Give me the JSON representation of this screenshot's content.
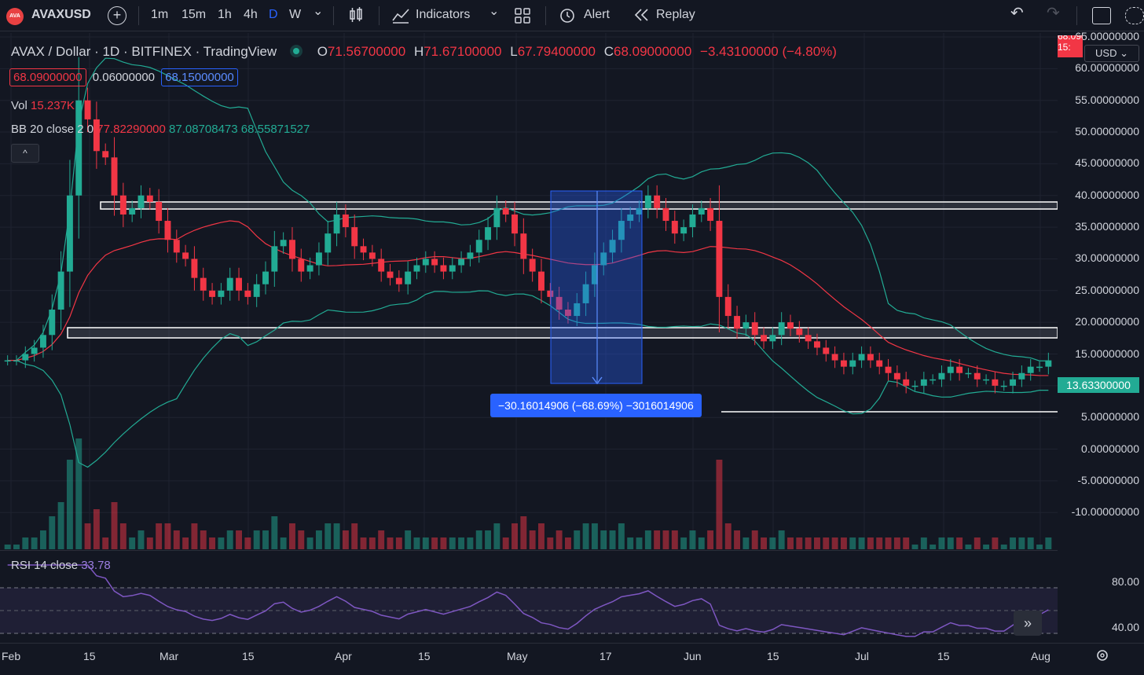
{
  "toolbar": {
    "logo_text": "AVA",
    "symbol": "AVAXUSD",
    "add_symbol": "+",
    "intervals": [
      "1m",
      "15m",
      "1h",
      "4h",
      "D",
      "W"
    ],
    "active_interval": "D",
    "interval_menu": "⌄",
    "indicators_label": "Indicators",
    "alert_label": "Alert",
    "replay_label": "Replay",
    "undo": "↶",
    "redo": "↷"
  },
  "legend": {
    "title": "AVAX / Dollar · 1D · BITFINEX · TradingView",
    "o_label": "O",
    "o": "71.56700000",
    "h_label": "H",
    "h": "71.67100000",
    "l_label": "L",
    "l": "67.79400000",
    "c_label": "C",
    "c": "68.09000000",
    "change": "−3.43100000 (−4.80%)",
    "bid": "68.09000000",
    "spread": "0.06000000",
    "ask": "68.15000000",
    "vol_label": "Vol",
    "vol": "15.237K",
    "bb_label": "BB 20 close 2 0",
    "bb_basis": "77.82290000",
    "bb_upper": "87.08708473",
    "bb_lower": "68.55871527",
    "collapse": "^",
    "rsi_label": "RSI 14 close",
    "rsi_value": "33.78"
  },
  "measure": {
    "text": "−30.16014906 (−68.69%) −3016014906"
  },
  "axis": {
    "unit": "USD",
    "top_price_a": "68.09000000",
    "top_price_b": "15:",
    "last_price": "13.63300000",
    "y_labels": [
      "65.00000000",
      "60.00000000",
      "55.00000000",
      "50.00000000",
      "45.00000000",
      "40.00000000",
      "35.00000000",
      "30.00000000",
      "25.00000000",
      "20.00000000",
      "15.00000000",
      "10.00000000",
      "5.00000000",
      "0.00000000",
      "-5.00000000",
      "-10.00000000"
    ],
    "rsi_labels": [
      "80.00",
      "40.00"
    ]
  },
  "xaxis": {
    "labels": [
      "Feb",
      "15",
      "Mar",
      "15",
      "Apr",
      "15",
      "May",
      "17",
      "Jun",
      "15",
      "Jul",
      "15",
      "Aug"
    ]
  },
  "colors": {
    "up": "#22ab94",
    "down": "#f23645",
    "accent": "#2962ff",
    "rsi": "#7e57c2"
  },
  "chart_data": {
    "type": "candlestick",
    "symbol": "AVAXUSD",
    "interval": "1D",
    "ylim": [
      -10,
      65
    ],
    "close_approx": [
      14,
      14,
      15,
      16,
      18,
      22,
      28,
      40,
      55,
      52,
      47,
      46,
      40,
      37,
      38,
      40,
      39,
      36,
      33,
      31,
      30,
      27,
      25,
      24,
      25,
      27,
      25,
      24,
      26,
      28,
      32,
      33,
      30,
      28,
      29,
      31,
      34,
      37,
      35,
      32,
      31,
      30,
      28,
      27,
      26,
      28,
      29,
      30,
      29,
      28,
      29,
      30,
      31,
      33,
      35,
      38,
      37,
      34,
      30,
      28,
      25,
      24,
      22,
      21,
      23,
      26,
      29,
      31,
      33,
      36,
      37,
      38,
      40,
      38,
      36,
      34,
      35,
      37,
      38,
      36,
      24,
      21,
      19,
      20,
      18,
      17,
      18,
      20,
      19,
      18,
      17,
      16,
      15,
      14,
      13,
      14,
      15,
      14,
      13,
      12,
      11,
      10,
      10,
      11,
      11,
      12,
      13,
      12,
      12,
      11,
      11,
      10,
      10,
      11,
      12,
      13,
      13,
      14
    ]
  }
}
